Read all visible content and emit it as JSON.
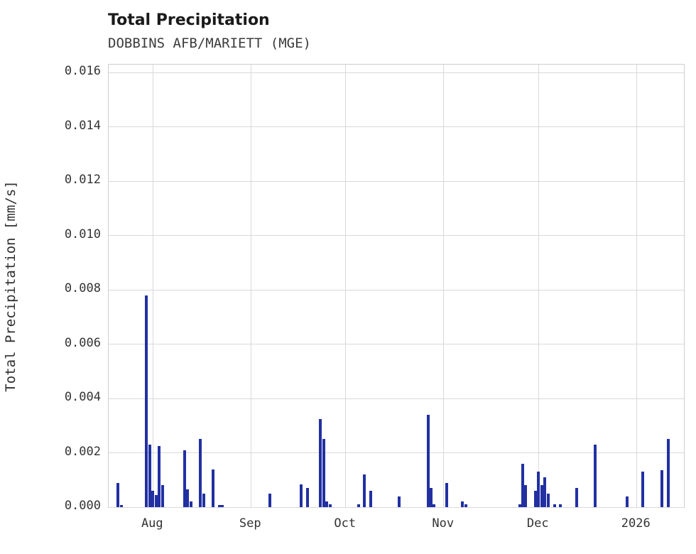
{
  "chart": {
    "title": "Total Precipitation",
    "subtitle": "DOBBINS AFB/MARIETT (MGE)",
    "ylabel": "Total Precipitation [mm/s]"
  },
  "chart_data": {
    "type": "bar",
    "title": "Total Precipitation",
    "subtitle": "DOBBINS AFB/MARIETT (MGE)",
    "xlabel": "",
    "ylabel": "Total Precipitation [mm/s]",
    "legend": "none",
    "grid": "on",
    "bar_color": "#2230a2",
    "grid_color": "#d9d9d9",
    "x_min": "2025-07-18",
    "x_max": "2026-01-16",
    "y_axis_max": 0.0163,
    "ylim": [
      0,
      0.016
    ],
    "y_ticks": [
      {
        "label": "0.000",
        "value": 0.0
      },
      {
        "label": "0.002",
        "value": 0.002
      },
      {
        "label": "0.004",
        "value": 0.004
      },
      {
        "label": "0.006",
        "value": 0.006
      },
      {
        "label": "0.008",
        "value": 0.008
      },
      {
        "label": "0.010",
        "value": 0.01
      },
      {
        "label": "0.012",
        "value": 0.012
      },
      {
        "label": "0.014",
        "value": 0.014
      },
      {
        "label": "0.016",
        "value": 0.016
      }
    ],
    "x_ticks": [
      {
        "label": "Aug",
        "date": "2025-08-01"
      },
      {
        "label": "Sep",
        "date": "2025-09-01"
      },
      {
        "label": "Oct",
        "date": "2025-10-01"
      },
      {
        "label": "Nov",
        "date": "2025-11-01"
      },
      {
        "label": "Dec",
        "date": "2025-12-01"
      },
      {
        "label": "2026",
        "date": "2026-01-01"
      }
    ],
    "bars": [
      {
        "d": "2025-07-21",
        "v": 0.0009
      },
      {
        "d": "2025-07-22",
        "v": 8e-05
      },
      {
        "d": "2025-07-30",
        "v": 0.0078
      },
      {
        "d": "2025-07-31",
        "v": 0.0023
      },
      {
        "d": "2025-08-01",
        "v": 0.0006
      },
      {
        "d": "2025-08-02",
        "v": 0.00045
      },
      {
        "d": "2025-08-03",
        "v": 0.00225
      },
      {
        "d": "2025-08-04",
        "v": 0.0008
      },
      {
        "d": "2025-08-11",
        "v": 0.0021
      },
      {
        "d": "2025-08-12",
        "v": 0.00065
      },
      {
        "d": "2025-08-13",
        "v": 0.0002
      },
      {
        "d": "2025-08-16",
        "v": 0.0025
      },
      {
        "d": "2025-08-17",
        "v": 0.0005
      },
      {
        "d": "2025-08-20",
        "v": 0.0014
      },
      {
        "d": "2025-08-22",
        "v": 8e-05
      },
      {
        "d": "2025-08-23",
        "v": 8e-05
      },
      {
        "d": "2025-09-07",
        "v": 0.0005
      },
      {
        "d": "2025-09-17",
        "v": 0.00085
      },
      {
        "d": "2025-09-19",
        "v": 0.0007
      },
      {
        "d": "2025-09-23",
        "v": 0.00325
      },
      {
        "d": "2025-09-24",
        "v": 0.0025
      },
      {
        "d": "2025-09-25",
        "v": 0.0002
      },
      {
        "d": "2025-09-26",
        "v": 0.0001
      },
      {
        "d": "2025-10-05",
        "v": 0.0001
      },
      {
        "d": "2025-10-07",
        "v": 0.0012
      },
      {
        "d": "2025-10-09",
        "v": 0.0006
      },
      {
        "d": "2025-10-18",
        "v": 0.0004
      },
      {
        "d": "2025-10-27",
        "v": 0.0034
      },
      {
        "d": "2025-10-28",
        "v": 0.0007
      },
      {
        "d": "2025-10-29",
        "v": 0.0001
      },
      {
        "d": "2025-11-02",
        "v": 0.0009
      },
      {
        "d": "2025-11-07",
        "v": 0.0002
      },
      {
        "d": "2025-11-08",
        "v": 0.0001
      },
      {
        "d": "2025-11-25",
        "v": 0.0001
      },
      {
        "d": "2025-11-26",
        "v": 0.0016
      },
      {
        "d": "2025-11-27",
        "v": 0.0008
      },
      {
        "d": "2025-11-30",
        "v": 0.0006
      },
      {
        "d": "2025-12-01",
        "v": 0.0013
      },
      {
        "d": "2025-12-02",
        "v": 0.0008
      },
      {
        "d": "2025-12-03",
        "v": 0.0011
      },
      {
        "d": "2025-12-04",
        "v": 0.0005
      },
      {
        "d": "2025-12-06",
        "v": 0.0001
      },
      {
        "d": "2025-12-08",
        "v": 0.0001
      },
      {
        "d": "2025-12-13",
        "v": 0.0007
      },
      {
        "d": "2025-12-19",
        "v": 0.0023
      },
      {
        "d": "2025-12-29",
        "v": 0.0004
      },
      {
        "d": "2026-01-03",
        "v": 0.0013
      },
      {
        "d": "2026-01-09",
        "v": 0.00135
      },
      {
        "d": "2026-01-11",
        "v": 0.0025
      }
    ]
  }
}
